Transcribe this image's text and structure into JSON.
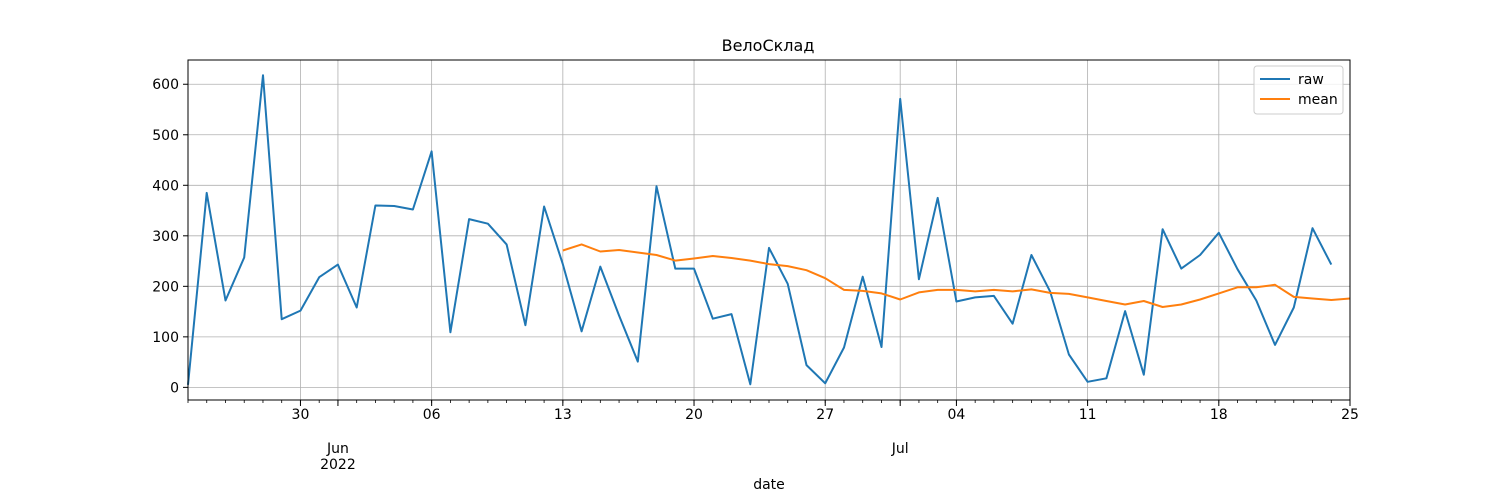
{
  "chart_data": {
    "type": "line",
    "title": "ВелоСклад",
    "xlabel": "date",
    "ylabel": "",
    "x_start": "2022-05-24",
    "x_end": "2022-07-25",
    "xlim": [
      "2022-05-24",
      "2022-07-25"
    ],
    "ylim": [
      -25,
      648
    ],
    "yticks": [
      0,
      100,
      200,
      300,
      400,
      500,
      600
    ],
    "xticks": [
      {
        "date": "2022-05-30",
        "label": "30"
      },
      {
        "date": "2022-06-01",
        "label": "Jun",
        "label2": "2022"
      },
      {
        "date": "2022-06-06",
        "label": "06"
      },
      {
        "date": "2022-06-13",
        "label": "13"
      },
      {
        "date": "2022-06-20",
        "label": "20"
      },
      {
        "date": "2022-06-27",
        "label": "27"
      },
      {
        "date": "2022-07-01",
        "label": "Jul"
      },
      {
        "date": "2022-07-04",
        "label": "04"
      },
      {
        "date": "2022-07-11",
        "label": "11"
      },
      {
        "date": "2022-07-18",
        "label": "18"
      },
      {
        "date": "2022-07-25",
        "label": "25"
      }
    ],
    "grid": true,
    "legend_position": "top-right",
    "series": [
      {
        "name": "raw",
        "color": "#1f77b4",
        "x": [
          "2022-05-24",
          "2022-05-25",
          "2022-05-26",
          "2022-05-27",
          "2022-05-28",
          "2022-05-29",
          "2022-05-30",
          "2022-05-31",
          "2022-06-01",
          "2022-06-02",
          "2022-06-03",
          "2022-06-04",
          "2022-06-05",
          "2022-06-06",
          "2022-06-07",
          "2022-06-08",
          "2022-06-09",
          "2022-06-10",
          "2022-06-11",
          "2022-06-12",
          "2022-06-13",
          "2022-06-14",
          "2022-06-15",
          "2022-06-16",
          "2022-06-17",
          "2022-06-18",
          "2022-06-19",
          "2022-06-20",
          "2022-06-21",
          "2022-06-22",
          "2022-06-23",
          "2022-06-24",
          "2022-06-25",
          "2022-06-26",
          "2022-06-27",
          "2022-06-28",
          "2022-06-29",
          "2022-06-30",
          "2022-07-01",
          "2022-07-02",
          "2022-07-03",
          "2022-07-04",
          "2022-07-05",
          "2022-07-06",
          "2022-07-07",
          "2022-07-08",
          "2022-07-09",
          "2022-07-10",
          "2022-07-11",
          "2022-07-12",
          "2022-07-13",
          "2022-07-14",
          "2022-07-15",
          "2022-07-16",
          "2022-07-17",
          "2022-07-18",
          "2022-07-19",
          "2022-07-20",
          "2022-07-21",
          "2022-07-22",
          "2022-07-23",
          "2022-07-24",
          "2022-07-25"
        ],
        "values": [
          5,
          385,
          172,
          257,
          618,
          135,
          152,
          218,
          243,
          158,
          360,
          359,
          352,
          467,
          109,
          333,
          324,
          283,
          123,
          358,
          244,
          111,
          239,
          142,
          51,
          398,
          235,
          235,
          136,
          145,
          6,
          276,
          205,
          44,
          8,
          79,
          219,
          80,
          571,
          214,
          375,
          170,
          178,
          181,
          126,
          262,
          190,
          65,
          11,
          18,
          151,
          25,
          313,
          235,
          262,
          306,
          234,
          172,
          84,
          158,
          315,
          243,
          null
        ]
      },
      {
        "name": "mean",
        "color": "#ff7f0e",
        "x": [
          "2022-06-13",
          "2022-06-14",
          "2022-06-15",
          "2022-06-16",
          "2022-06-17",
          "2022-06-18",
          "2022-06-19",
          "2022-06-20",
          "2022-06-21",
          "2022-06-22",
          "2022-06-23",
          "2022-06-24",
          "2022-06-25",
          "2022-06-26",
          "2022-06-27",
          "2022-06-28",
          "2022-06-29",
          "2022-06-30",
          "2022-07-01",
          "2022-07-02",
          "2022-07-03",
          "2022-07-04",
          "2022-07-05",
          "2022-07-06",
          "2022-07-07",
          "2022-07-08",
          "2022-07-09",
          "2022-07-10",
          "2022-07-11",
          "2022-07-12",
          "2022-07-13",
          "2022-07-14",
          "2022-07-15",
          "2022-07-16",
          "2022-07-17",
          "2022-07-18",
          "2022-07-19",
          "2022-07-20",
          "2022-07-21",
          "2022-07-22",
          "2022-07-23",
          "2022-07-24",
          "2022-07-25"
        ],
        "values": [
          271,
          283,
          269,
          272,
          267,
          262,
          251,
          255,
          260,
          256,
          251,
          244,
          240,
          232,
          216,
          193,
          191,
          186,
          174,
          188,
          193,
          193,
          190,
          193,
          190,
          194,
          187,
          185,
          178,
          171,
          164,
          171,
          159,
          164,
          174,
          186,
          198,
          198,
          203,
          179,
          176,
          173,
          176
        ]
      }
    ]
  }
}
